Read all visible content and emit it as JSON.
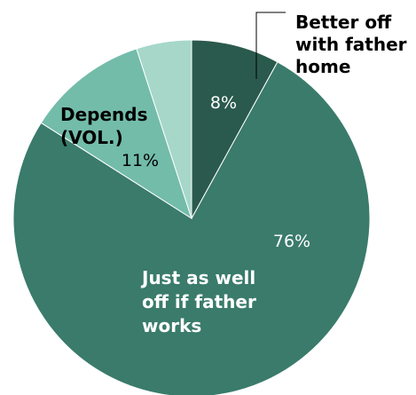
{
  "chart_data": {
    "type": "pie",
    "slices": [
      {
        "label": "Better off with father home",
        "value": 8,
        "value_label": "8%",
        "color": "#2a5a4d"
      },
      {
        "label": "Just as well off if father works",
        "value": 76,
        "value_label": "76%",
        "color": "#3a7b6b"
      },
      {
        "label": "Depends (VOL.)",
        "value": 11,
        "value_label": "11%",
        "color": "#73bcaa"
      },
      {
        "label": "",
        "value": 5,
        "value_label": "",
        "color": "#a6d7c9"
      }
    ],
    "start_angle": "12 o'clock",
    "direction": "clockwise"
  }
}
